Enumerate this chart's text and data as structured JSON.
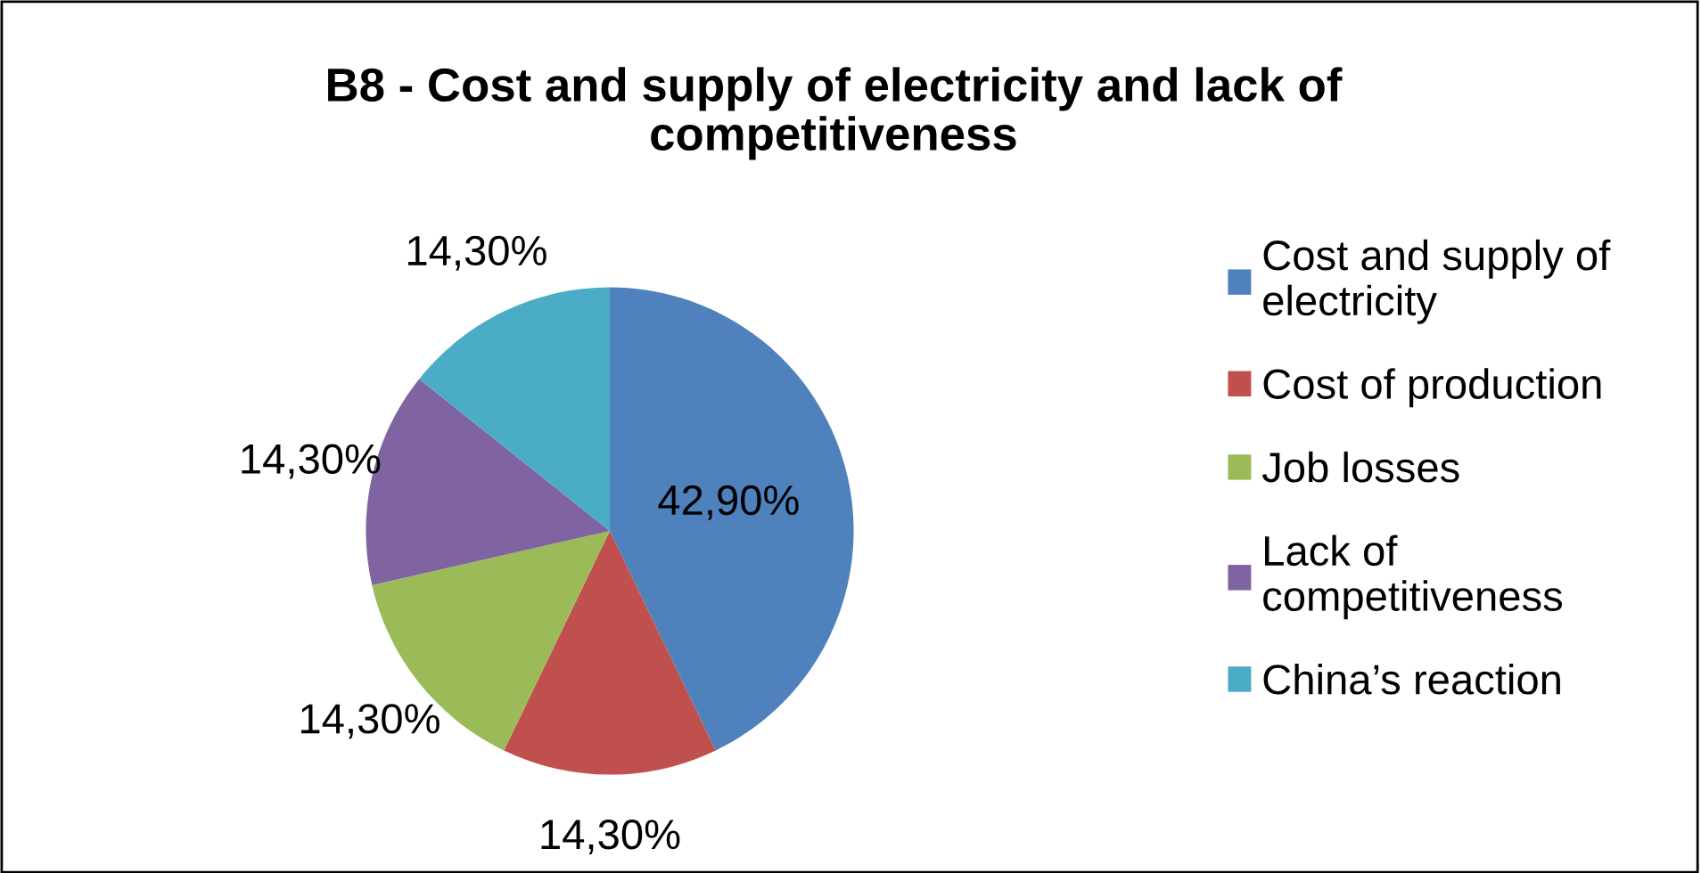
{
  "chart_data": {
    "type": "pie",
    "title": "B8 - Cost and supply of electricity and lack of competitiveness",
    "categories": [
      "Cost and supply of electricity",
      "Cost of production",
      "Job losses",
      "Lack of competitiveness",
      "China’s reaction"
    ],
    "values": [
      42.9,
      14.3,
      14.3,
      14.3,
      14.3
    ],
    "value_labels": [
      "42,90%",
      "14,30%",
      "14,30%",
      "14,30%",
      "14,30%"
    ],
    "colors": [
      "#4f81bd",
      "#c0504d",
      "#9bbb59",
      "#8064a2",
      "#4bacc6"
    ],
    "legend": "right"
  }
}
